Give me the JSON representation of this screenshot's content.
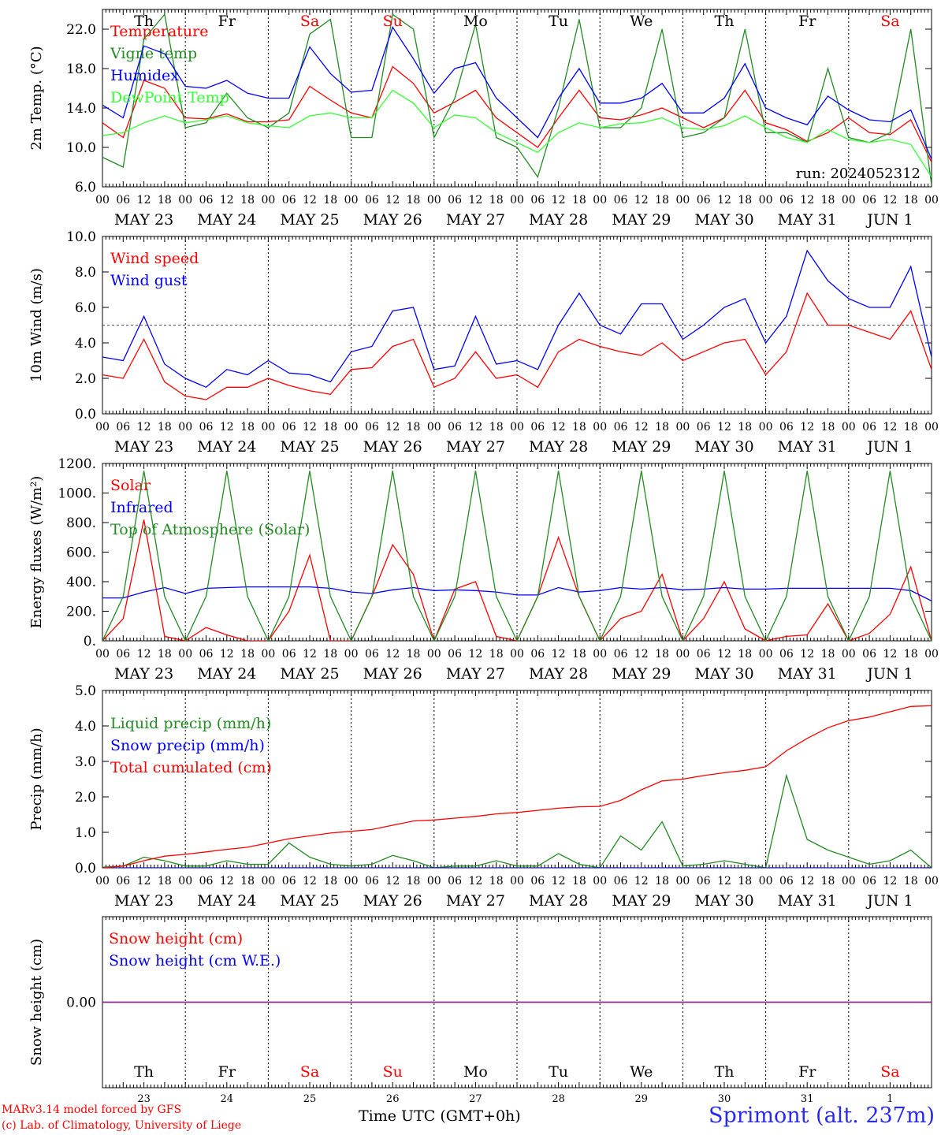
{
  "station": "Sprimont (alt. 237m)",
  "run_label": "run: 2024052312",
  "credits": [
    "MARv3.14 model forced by GFS",
    "(c) Lab. of Climatology, University of Liege"
  ],
  "x_axis_title": "Time UTC (GMT+0h)",
  "hour_ticks": [
    "00",
    "06",
    "12",
    "18"
  ],
  "day_labels": [
    "MAY 23",
    "MAY 24",
    "MAY 25",
    "MAY 26",
    "MAY 27",
    "MAY 28",
    "MAY 29",
    "MAY 30",
    "MAY 31",
    "JUN  1"
  ],
  "weekdays": [
    "Th",
    "Fr",
    "Sa",
    "Su",
    "Mo",
    "Tu",
    "We",
    "Th",
    "Fr",
    "Sa"
  ],
  "weekday_colors": [
    "#000000",
    "#000000",
    "#ff0000",
    "#ff0000",
    "#000000",
    "#000000",
    "#000000",
    "#000000",
    "#000000",
    "#ff0000"
  ],
  "day_numbers": [
    "23",
    "24",
    "25",
    "26",
    "27",
    "28",
    "29",
    "30",
    "31",
    "1"
  ],
  "chart_data": [
    {
      "type": "line",
      "ylabel": "2m Temp. (°C)",
      "ylim": [
        6,
        24
      ],
      "yticks": [
        "6.0",
        "10.0",
        "14.0",
        "18.0",
        "22.0"
      ],
      "x_unit": "hours since MAY 23 00 UTC",
      "x": [
        0,
        6,
        12,
        18,
        24,
        30,
        36,
        42,
        48,
        54,
        60,
        66,
        72,
        78,
        84,
        90,
        96,
        102,
        108,
        114,
        120,
        126,
        132,
        138,
        144,
        150,
        156,
        162,
        168,
        174,
        180,
        186,
        192,
        198,
        204,
        210,
        216,
        222,
        228,
        234,
        240
      ],
      "series": [
        {
          "name": "Temperature",
          "color": "#ff0000",
          "values": [
            12.5,
            11.0,
            16.8,
            16.0,
            13.0,
            12.9,
            13.4,
            12.6,
            12.6,
            12.8,
            16.2,
            14.8,
            13.5,
            13.0,
            18.2,
            16.5,
            13.5,
            14.6,
            15.8,
            13.0,
            11.5,
            10.0,
            13.0,
            15.8,
            13.0,
            12.8,
            13.3,
            14.0,
            13.0,
            12.0,
            13.0,
            15.8,
            12.5,
            11.8,
            10.6,
            11.5,
            13.0,
            11.5,
            11.3,
            12.8,
            8.5
          ]
        },
        {
          "name": "Vigne temp",
          "color": "#228b22",
          "values": [
            9.0,
            8.0,
            21.0,
            23.5,
            12.0,
            12.5,
            15.5,
            13.0,
            12.0,
            13.5,
            21.5,
            23.0,
            11.0,
            11.0,
            23.5,
            22.0,
            11.0,
            15.0,
            22.5,
            11.0,
            10.0,
            7.0,
            14.0,
            23.0,
            12.0,
            12.0,
            14.0,
            22.0,
            11.0,
            11.5,
            13.0,
            22.0,
            11.5,
            11.5,
            10.5,
            18.0,
            11.0,
            10.5,
            11.5,
            22.0,
            6.2
          ]
        },
        {
          "name": "Humidex",
          "color": "#0000ff",
          "values": [
            14.3,
            13.0,
            20.3,
            19.5,
            16.2,
            16.0,
            16.8,
            15.5,
            15.0,
            15.0,
            20.2,
            17.5,
            15.6,
            15.8,
            22.2,
            19.0,
            15.5,
            18.0,
            18.6,
            15.0,
            13.0,
            11.0,
            15.0,
            18.0,
            14.5,
            14.5,
            15.0,
            16.5,
            13.5,
            13.5,
            15.0,
            18.5,
            14.0,
            13.0,
            12.3,
            15.2,
            13.8,
            12.8,
            12.6,
            13.8,
            8.8
          ]
        },
        {
          "name": "DewPoint Temp",
          "color": "#33ff33",
          "values": [
            11.2,
            11.5,
            12.5,
            13.2,
            12.5,
            12.8,
            13.2,
            12.5,
            12.2,
            12.0,
            13.2,
            13.5,
            13.0,
            13.0,
            15.8,
            14.5,
            12.0,
            13.3,
            13.0,
            11.5,
            10.5,
            9.5,
            11.5,
            12.5,
            12.0,
            12.4,
            12.5,
            13.0,
            12.0,
            11.8,
            12.2,
            13.2,
            12.0,
            11.0,
            10.5,
            11.8,
            10.8,
            10.5,
            10.8,
            10.3,
            7.0
          ]
        }
      ]
    },
    {
      "type": "line",
      "ylabel": "10m Wind (m/s)",
      "ylim": [
        0,
        10
      ],
      "yticks": [
        "0.0",
        "2.0",
        "4.0",
        "6.0",
        "8.0",
        "10.0"
      ],
      "reference_line": 5,
      "x": [
        0,
        6,
        12,
        18,
        24,
        30,
        36,
        42,
        48,
        54,
        60,
        66,
        72,
        78,
        84,
        90,
        96,
        102,
        108,
        114,
        120,
        126,
        132,
        138,
        144,
        150,
        156,
        162,
        168,
        174,
        180,
        186,
        192,
        198,
        204,
        210,
        216,
        222,
        228,
        234,
        240
      ],
      "series": [
        {
          "name": "Wind speed",
          "color": "#ff0000",
          "values": [
            2.2,
            2.0,
            4.2,
            1.8,
            1.0,
            0.8,
            1.5,
            1.5,
            2.0,
            1.6,
            1.3,
            1.1,
            2.5,
            2.6,
            3.8,
            4.2,
            1.5,
            2.0,
            3.5,
            2.0,
            2.2,
            1.5,
            3.5,
            4.2,
            3.8,
            3.5,
            3.3,
            4.0,
            3.0,
            3.5,
            4.0,
            4.2,
            2.2,
            3.5,
            6.8,
            5.0,
            5.0,
            4.6,
            4.2,
            5.8,
            2.5
          ]
        },
        {
          "name": "Wind gust",
          "color": "#0000ff",
          "values": [
            3.2,
            3.0,
            5.5,
            2.8,
            2.0,
            1.5,
            2.5,
            2.2,
            3.0,
            2.3,
            2.2,
            1.8,
            3.5,
            3.8,
            5.8,
            6.0,
            2.5,
            2.7,
            5.5,
            2.8,
            3.0,
            2.5,
            5.0,
            6.8,
            5.0,
            4.5,
            6.2,
            6.2,
            4.2,
            5.0,
            6.0,
            6.5,
            4.0,
            5.5,
            9.2,
            7.5,
            6.5,
            6.0,
            6.0,
            8.3,
            3.2
          ]
        }
      ]
    },
    {
      "type": "line",
      "ylabel": "Energy fluxes (W/m²)",
      "ylim": [
        0,
        1200
      ],
      "yticks": [
        "0.",
        "200.",
        "400.",
        "600.",
        "800.",
        "1000.",
        "1200."
      ],
      "x": [
        0,
        6,
        12,
        18,
        24,
        30,
        36,
        42,
        48,
        54,
        60,
        66,
        72,
        78,
        84,
        90,
        96,
        102,
        108,
        114,
        120,
        126,
        132,
        138,
        144,
        150,
        156,
        162,
        168,
        174,
        180,
        186,
        192,
        198,
        204,
        210,
        216,
        222,
        228,
        234,
        240
      ],
      "series": [
        {
          "name": "Solar",
          "color": "#ff0000",
          "values": [
            0,
            150,
            820,
            30,
            0,
            90,
            40,
            0,
            0,
            200,
            580,
            0,
            0,
            300,
            650,
            450,
            0,
            350,
            400,
            30,
            0,
            300,
            700,
            300,
            0,
            150,
            200,
            450,
            0,
            150,
            400,
            80,
            0,
            30,
            40,
            250,
            0,
            50,
            180,
            500,
            0
          ]
        },
        {
          "name": "Infrared",
          "color": "#0000ff",
          "values": [
            290,
            290,
            330,
            360,
            320,
            355,
            360,
            365,
            365,
            365,
            365,
            355,
            330,
            320,
            345,
            360,
            340,
            345,
            340,
            330,
            310,
            310,
            360,
            330,
            340,
            360,
            350,
            360,
            345,
            350,
            360,
            350,
            350,
            355,
            355,
            355,
            355,
            355,
            355,
            340,
            270
          ]
        },
        {
          "name": "Top of Atmosphere (Solar)",
          "color": "#228b22",
          "values": [
            0,
            300,
            1150,
            300,
            0,
            300,
            1150,
            300,
            0,
            300,
            1150,
            300,
            0,
            300,
            1150,
            300,
            0,
            300,
            1150,
            300,
            0,
            300,
            1150,
            300,
            0,
            300,
            1150,
            300,
            0,
            300,
            1150,
            300,
            0,
            300,
            1150,
            300,
            0,
            300,
            1150,
            300,
            0
          ]
        }
      ]
    },
    {
      "type": "line",
      "ylabel": "Precip (mm/h)",
      "ylim": [
        0,
        5
      ],
      "yticks": [
        "0.0",
        "1.0",
        "2.0",
        "3.0",
        "4.0",
        "5.0"
      ],
      "x": [
        0,
        6,
        12,
        18,
        24,
        30,
        36,
        42,
        48,
        54,
        60,
        66,
        72,
        78,
        84,
        90,
        96,
        102,
        108,
        114,
        120,
        126,
        132,
        138,
        144,
        150,
        156,
        162,
        168,
        174,
        180,
        186,
        192,
        198,
        204,
        210,
        216,
        222,
        228,
        234,
        240
      ],
      "series": [
        {
          "name": "Liquid precip (mm/h)",
          "color": "#228b22",
          "values": [
            0.02,
            0.05,
            0.3,
            0.2,
            0.05,
            0.05,
            0.2,
            0.1,
            0.1,
            0.7,
            0.3,
            0.1,
            0.05,
            0.1,
            0.35,
            0.2,
            0.0,
            0.05,
            0.05,
            0.2,
            0.05,
            0.05,
            0.4,
            0.1,
            0.0,
            0.9,
            0.5,
            1.3,
            0.05,
            0.1,
            0.2,
            0.1,
            0.0,
            2.6,
            0.8,
            0.5,
            0.3,
            0.1,
            0.2,
            0.5,
            0.0
          ]
        },
        {
          "name": "Snow precip (mm/h)",
          "color": "#0000ff",
          "values": [
            0,
            0,
            0,
            0,
            0,
            0,
            0,
            0,
            0,
            0,
            0,
            0,
            0,
            0,
            0,
            0,
            0,
            0,
            0,
            0,
            0,
            0,
            0,
            0,
            0,
            0,
            0,
            0,
            0,
            0,
            0,
            0,
            0,
            0,
            0,
            0,
            0,
            0,
            0,
            0,
            0
          ]
        },
        {
          "name": "Total cumulated (cm)",
          "color": "#ff0000",
          "values": [
            0.0,
            0.05,
            0.2,
            0.33,
            0.38,
            0.45,
            0.52,
            0.58,
            0.7,
            0.82,
            0.9,
            0.98,
            1.03,
            1.08,
            1.2,
            1.32,
            1.35,
            1.4,
            1.45,
            1.52,
            1.56,
            1.62,
            1.68,
            1.72,
            1.73,
            1.9,
            2.2,
            2.45,
            2.5,
            2.6,
            2.68,
            2.75,
            2.85,
            3.3,
            3.65,
            3.95,
            4.15,
            4.25,
            4.4,
            4.55,
            4.57
          ]
        }
      ]
    },
    {
      "type": "line",
      "ylabel": "Snow height (cm)",
      "ylim": [
        -1,
        1
      ],
      "yticks": [
        "0.00"
      ],
      "x": [
        0,
        240
      ],
      "series": [
        {
          "name": "Snow height (cm)",
          "color": "#ff0000",
          "values": [
            0,
            0
          ]
        },
        {
          "name": "Snow height (cm W.E.)",
          "color": "#0000ff",
          "values": [
            0,
            0
          ]
        }
      ]
    }
  ]
}
